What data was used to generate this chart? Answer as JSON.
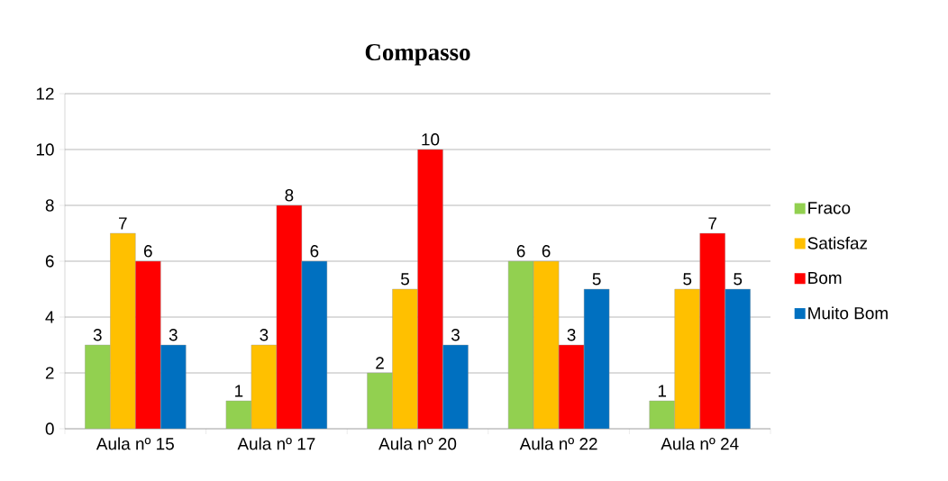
{
  "chart_data": {
    "type": "bar",
    "title": "Compasso",
    "categories": [
      "Aula nº 15",
      "Aula nº 17",
      "Aula nº 20",
      "Aula nº 22",
      "Aula nº 24"
    ],
    "series": [
      {
        "name": "Fraco",
        "color": "#92d050",
        "values": [
          3,
          1,
          2,
          6,
          1
        ]
      },
      {
        "name": "Satisfaz",
        "color": "#ffc000",
        "values": [
          7,
          3,
          5,
          6,
          5
        ]
      },
      {
        "name": "Bom",
        "color": "#ff0000",
        "values": [
          6,
          8,
          10,
          3,
          7
        ]
      },
      {
        "name": "Muito Bom",
        "color": "#0070c0",
        "values": [
          3,
          6,
          3,
          5,
          5
        ]
      }
    ],
    "ylim": [
      0,
      12
    ],
    "yticks": [
      0,
      2,
      4,
      6,
      8,
      10,
      12
    ],
    "grid": "y",
    "legend": "right",
    "data_labels": true
  }
}
